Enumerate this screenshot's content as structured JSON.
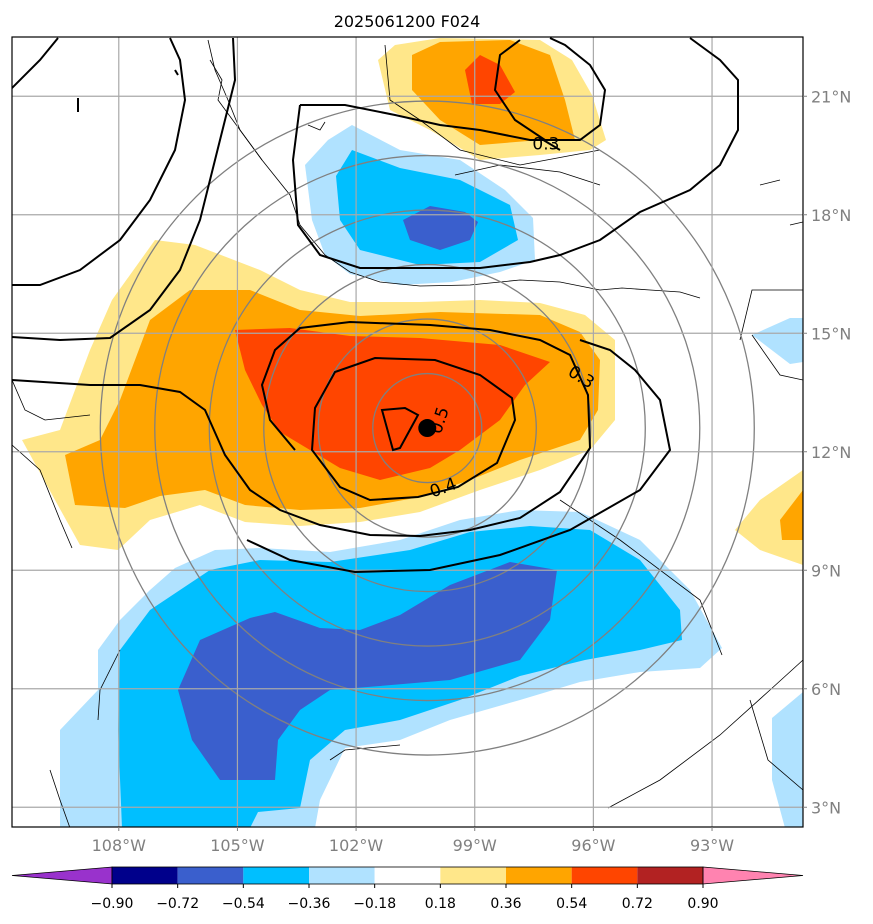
{
  "chart_data": {
    "type": "heatmap",
    "title": "2025061200 F024",
    "projection": "map",
    "lon_range": [
      -110.7,
      -90.7
    ],
    "lat_range": [
      2.5,
      22.5
    ],
    "grid": true,
    "x_ticks": [
      {
        "value": -108,
        "label": "108°W"
      },
      {
        "value": -105,
        "label": "105°W"
      },
      {
        "value": -102,
        "label": "102°W"
      },
      {
        "value": -99,
        "label": "99°W"
      },
      {
        "value": -96,
        "label": "96°W"
      },
      {
        "value": -93,
        "label": "93°W"
      }
    ],
    "y_ticks": [
      {
        "value": 3,
        "label": "3°N"
      },
      {
        "value": 6,
        "label": "6°N"
      },
      {
        "value": 9,
        "label": "9°N"
      },
      {
        "value": 12,
        "label": "12°N"
      },
      {
        "value": 15,
        "label": "15°N"
      },
      {
        "value": 18,
        "label": "18°N"
      },
      {
        "value": 21,
        "label": "21°N"
      }
    ],
    "colorbar": {
      "levels": [
        -0.9,
        -0.72,
        -0.54,
        -0.36,
        -0.18,
        0.18,
        0.36,
        0.54,
        0.72,
        0.9
      ],
      "tick_labels": [
        "−0.90",
        "−0.72",
        "−0.54",
        "−0.36",
        "−0.18",
        "0.18",
        "0.36",
        "0.54",
        "0.72",
        "0.90"
      ],
      "colors": [
        "#9932cc",
        "#00008b",
        "#3a5fcd",
        "#00bfff",
        "#b0e2ff",
        "#ffffff",
        "#ffe78a",
        "#ffa500",
        "#ff4500",
        "#b22222",
        "#ff83b0"
      ],
      "extend": "both"
    },
    "contour_labels": [
      {
        "text": "0.3",
        "lon": -97.2,
        "lat": 19.8,
        "rot": 0
      },
      {
        "text": "0.3",
        "lon": -96.3,
        "lat": 13.9,
        "rot": 32
      },
      {
        "text": "0.5",
        "lon": -99.9,
        "lat": 12.8,
        "rot": -72
      },
      {
        "text": "0.4",
        "lon": -99.8,
        "lat": 11.1,
        "rot": -20
      }
    ],
    "center_marker": {
      "lon": -100.2,
      "lat": 12.6
    },
    "range_rings": [
      1,
      2,
      3,
      4,
      5,
      6
    ]
  }
}
